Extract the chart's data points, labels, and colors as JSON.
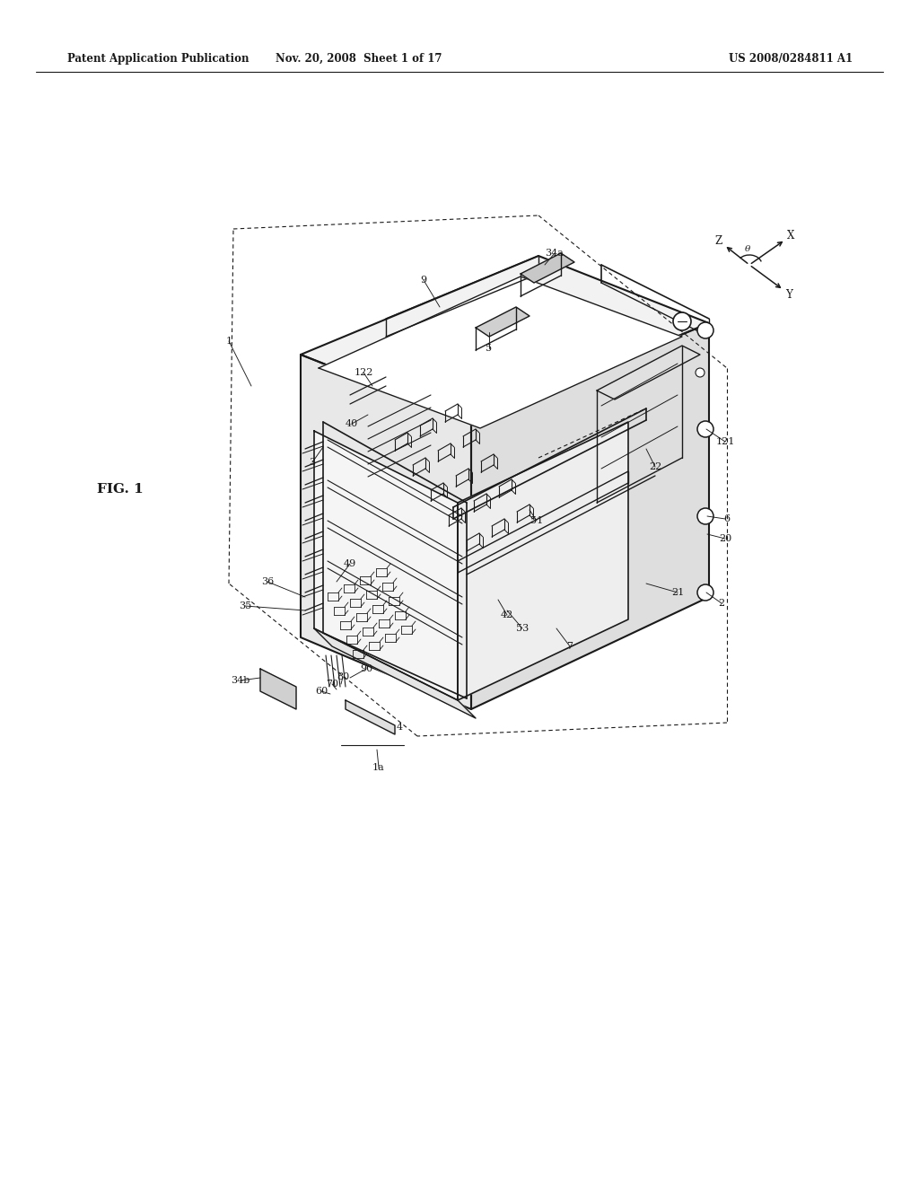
{
  "header_left": "Patent Application Publication",
  "header_mid": "Nov. 20, 2008  Sheet 1 of 17",
  "header_right": "US 2008/0284811 A1",
  "fig_label": "FIG. 1",
  "background_color": "#ffffff",
  "line_color": "#1a1a1a",
  "header_fontsize": 8.5,
  "fig_label_fontsize": 11,
  "label_fontsize": 8
}
